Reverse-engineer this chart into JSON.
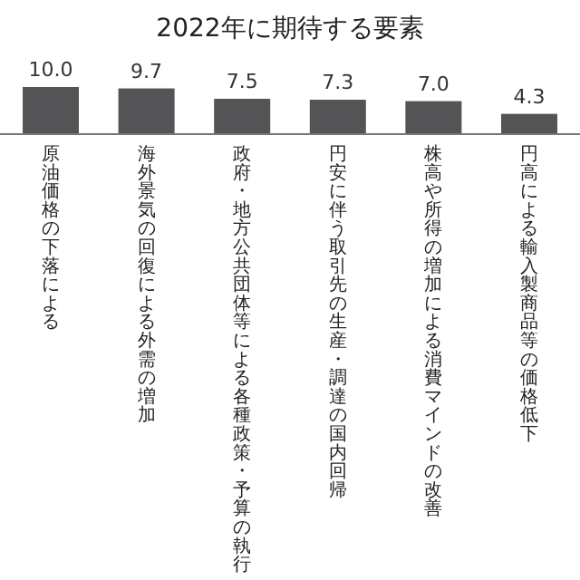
{
  "chart_data": {
    "type": "bar",
    "title": "2022年に期待する要素",
    "categories": [
      "原油価格の下落による",
      "海外景気の回復による外需の増加",
      "政府・地方公共団体等による各種政策・予算の執行",
      "円安に伴う取引先の生産・調達の国内回帰",
      "株高や所得の増加による消費マインドの改善",
      "円高による輸入製商品等の価格低下"
    ],
    "values": [
      10.0,
      9.7,
      7.5,
      7.3,
      7.0,
      4.3
    ],
    "value_labels": [
      "10.0",
      "9.7",
      "7.5",
      "7.3",
      "7.0",
      "4.3"
    ],
    "color": "#545456"
  }
}
